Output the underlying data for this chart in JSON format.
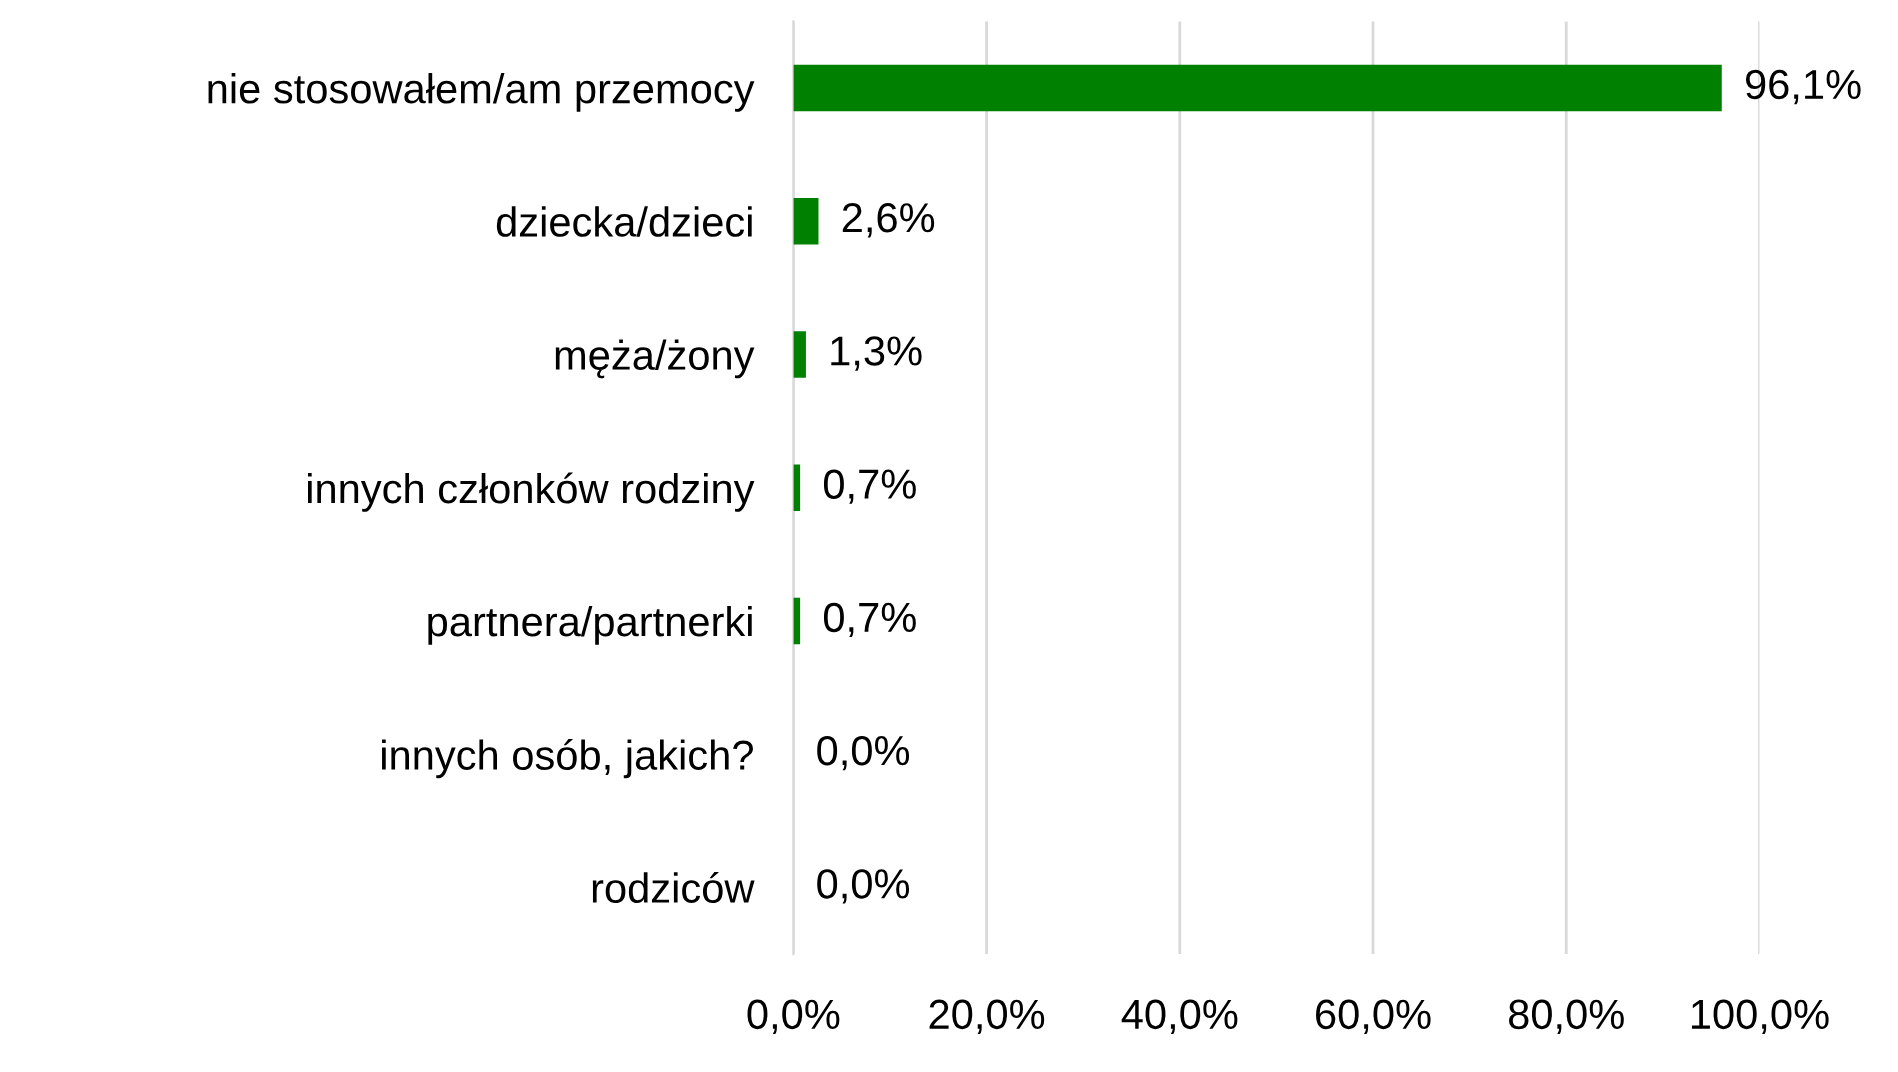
{
  "chart_data": {
    "type": "bar",
    "orientation": "horizontal",
    "categories": [
      "nie stosowałem/am przemocy",
      "dziecka/dzieci",
      "męża/żony",
      "innych członków rodziny",
      "partnera/partnerki",
      "innych osób, jakich?",
      "rodziców"
    ],
    "values": [
      96.1,
      2.6,
      1.3,
      0.7,
      0.7,
      0.0,
      0.0
    ],
    "value_labels": [
      "96,1%",
      "2,6%",
      "1,3%",
      "0,7%",
      "0,7%",
      "0,0%",
      "0,0%"
    ],
    "color": "#008000",
    "xlim": [
      0,
      100
    ],
    "xticks": [
      {
        "value": 0,
        "label": "0,0%"
      },
      {
        "value": 20,
        "label": "20,0%"
      },
      {
        "value": 40,
        "label": "40,0%"
      },
      {
        "value": 60,
        "label": "60,0%"
      },
      {
        "value": 80,
        "label": "80,0%"
      },
      {
        "value": 100,
        "label": "100,0%"
      }
    ],
    "grid": "x",
    "legend": false
  }
}
